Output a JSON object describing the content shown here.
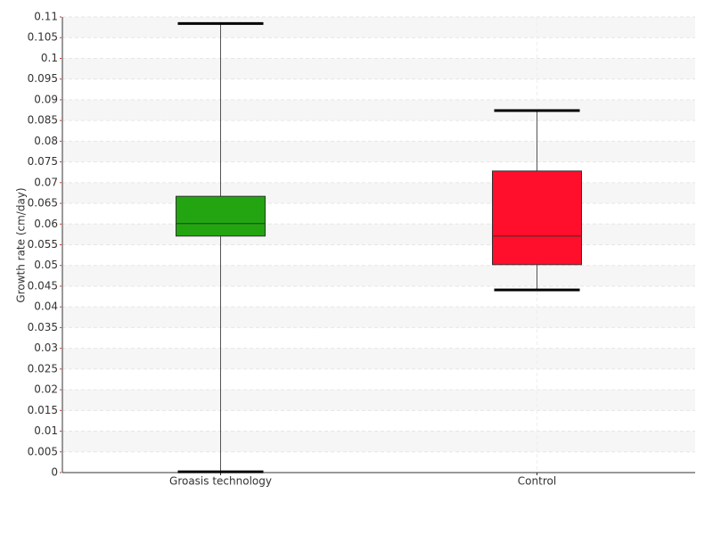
{
  "chart_data": {
    "type": "box",
    "y_label": "Growth rate (cm/day)",
    "categories": [
      "Groasis technology",
      "Control"
    ],
    "boxes": [
      {
        "min": 0.0002,
        "q1": 0.0571,
        "median": 0.0601,
        "q3": 0.0667,
        "max": 0.1084,
        "color": "#22a511"
      },
      {
        "min": 0.0441,
        "q1": 0.0502,
        "median": 0.0571,
        "q3": 0.0728,
        "max": 0.0874,
        "color": "#ff0f2b"
      }
    ],
    "ylim": [
      0,
      0.11
    ],
    "yticks": [
      0,
      0.005,
      0.01,
      0.015,
      0.02,
      0.025,
      0.03,
      0.035,
      0.04,
      0.045,
      0.05,
      0.055,
      0.06,
      0.065,
      0.07,
      0.075,
      0.08,
      0.085,
      0.09,
      0.095,
      0.1,
      0.105,
      0.11
    ],
    "grid": true
  }
}
